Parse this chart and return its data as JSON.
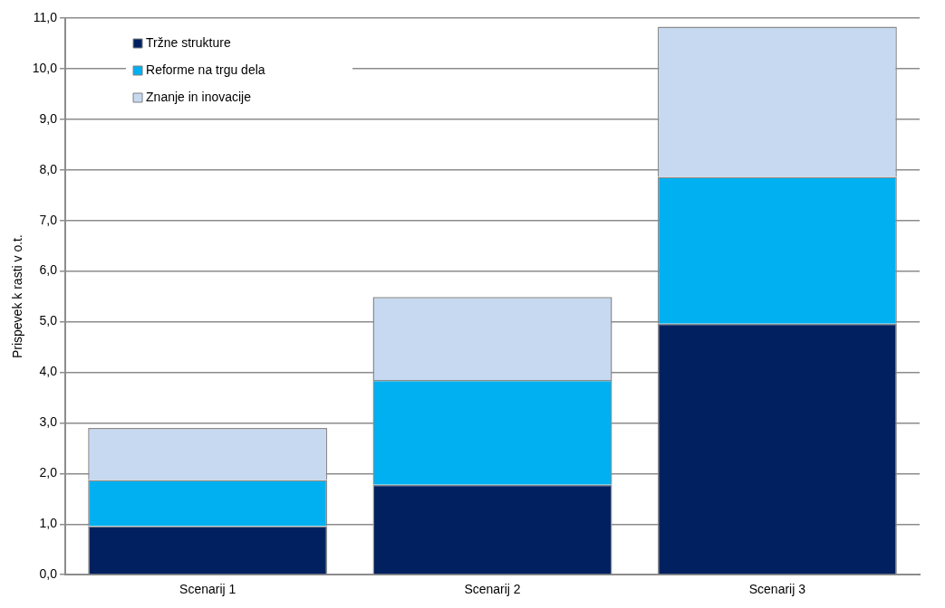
{
  "chart_data": {
    "type": "bar",
    "stacked": true,
    "ylabel": "Prispevek k rasti v o.t.",
    "categories": [
      "Scenarij 1",
      "Scenarij 2",
      "Scenarij 3"
    ],
    "series": [
      {
        "name": "Tržne strukture",
        "color": "#002060",
        "values": [
          0.96,
          1.78,
          4.96
        ]
      },
      {
        "name": "Reforme na trgu dela",
        "color": "#00b0f0",
        "values": [
          0.91,
          2.07,
          2.9
        ]
      },
      {
        "name": "Znanje in inovacije",
        "color": "#c6d9f1",
        "values": [
          1.03,
          1.64,
          2.97
        ]
      }
    ],
    "ylim": [
      0,
      11
    ],
    "yticks": [
      {
        "value": 0,
        "label": "0,0"
      },
      {
        "value": 1,
        "label": "1,0"
      },
      {
        "value": 2,
        "label": "2,0"
      },
      {
        "value": 3,
        "label": "3,0"
      },
      {
        "value": 4,
        "label": "4,0"
      },
      {
        "value": 5,
        "label": "5,0"
      },
      {
        "value": 6,
        "label": "6,0"
      },
      {
        "value": 7,
        "label": "7,0"
      },
      {
        "value": 8,
        "label": "8,0"
      },
      {
        "value": 9,
        "label": "9,0"
      },
      {
        "value": 10,
        "label": "10,0"
      },
      {
        "value": 11,
        "label": "11,0"
      }
    ],
    "grid": "y",
    "legend": "top left"
  }
}
